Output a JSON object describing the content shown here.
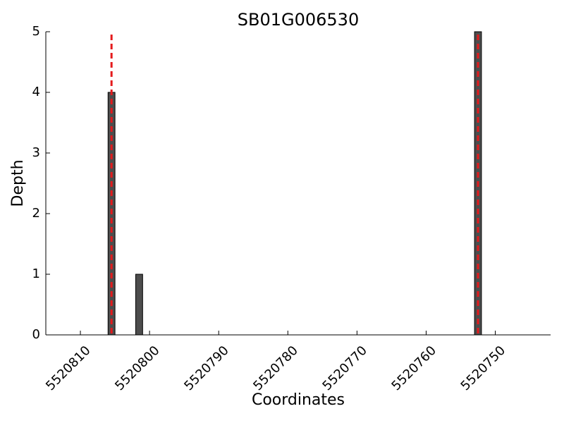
{
  "chart_data": {
    "type": "bar",
    "title": "SB01G006530",
    "x_label": "Coordinates",
    "y_label": "Depth",
    "x": [
      5520805.5,
      5520801.5,
      5520752.5
    ],
    "values": [
      4,
      1,
      5
    ],
    "color": "#4d4d4d",
    "vlines": [
      5520805.5,
      5520752.5
    ],
    "vline_color": "#e41a1c",
    "xlim": [
      5520815,
      5520742
    ],
    "xticks": [
      5520810,
      5520800,
      5520790,
      5520780,
      5520770,
      5520760,
      5520750
    ],
    "ylim": [
      0,
      5
    ],
    "yticks": [
      0,
      1,
      2,
      3,
      4,
      5
    ],
    "grid": false
  }
}
